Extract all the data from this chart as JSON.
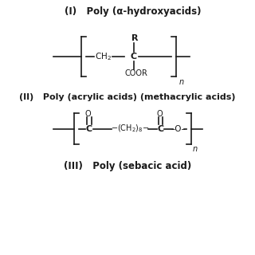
{
  "bg_color": "#ffffff",
  "text_color": "#1a1a1a",
  "title1": "(I)   Poly (α-hydroxyacids)",
  "title2": "(II)   Poly (acrylic acids) (methacrylic acids)",
  "title3": "(III)   Poly (sebacic acid)",
  "figsize": [
    3.2,
    3.2
  ],
  "dpi": 100
}
